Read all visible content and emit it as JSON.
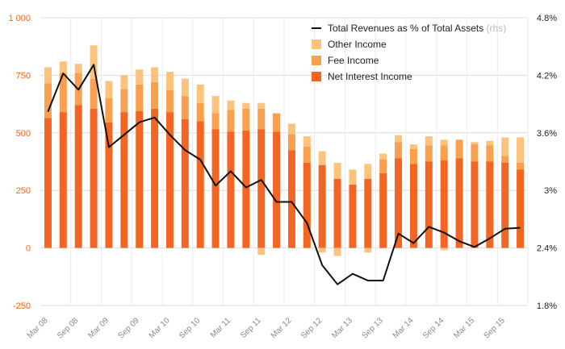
{
  "chart_data": {
    "type": "bar",
    "stacked": true,
    "grid": true,
    "legend_position": "top-right",
    "categories": [
      "Mar 08",
      "Jun 08",
      "Sep 08",
      "Dec 08",
      "Mar 09",
      "Jun 09",
      "Sep 09",
      "Dec 09",
      "Mar 10",
      "Jun 10",
      "Sep 10",
      "Dec 10",
      "Mar 11",
      "Jun 11",
      "Sep 11",
      "Dec 11",
      "Mar 12",
      "Jun 12",
      "Sep 12",
      "Dec 12",
      "Mar 13",
      "Jun 13",
      "Sep 13",
      "Dec 13",
      "Mar 14",
      "Jun 14",
      "Sep 14",
      "Dec 14",
      "Mar 15",
      "Jun 15",
      "Sep 15",
      "Dec 15"
    ],
    "x_tick_labels": [
      "Mar 08",
      "Sep 08",
      "Mar 09",
      "Sep 09",
      "Mar 10",
      "Sep 10",
      "Mar 11",
      "Sep 11",
      "Mar 12",
      "Sep 12",
      "Mar 13",
      "Sep 13",
      "Mar 14",
      "Sep 14",
      "Mar 15",
      "Sep 15"
    ],
    "series": [
      {
        "name": "Net Interest Income",
        "color": "#f26522",
        "axis": "left",
        "values": [
          565,
          590,
          620,
          605,
          545,
          590,
          595,
          605,
          590,
          560,
          550,
          515,
          505,
          510,
          515,
          505,
          425,
          370,
          360,
          300,
          275,
          300,
          325,
          390,
          365,
          375,
          380,
          390,
          375,
          375,
          370,
          340
        ]
      },
      {
        "name": "Fee Income",
        "color": "#f9a04f",
        "axis": "left",
        "values": [
          150,
          170,
          140,
          130,
          105,
          100,
          115,
          115,
          95,
          100,
          80,
          70,
          95,
          95,
          90,
          80,
          70,
          70,
          0,
          0,
          0,
          0,
          60,
          70,
          65,
          70,
          65,
          80,
          75,
          70,
          30,
          30
        ]
      },
      {
        "name": "Other Income",
        "color": "#fcc37e",
        "axis": "left",
        "values": [
          70,
          50,
          40,
          145,
          75,
          60,
          65,
          65,
          80,
          75,
          80,
          75,
          40,
          25,
          25,
          0,
          45,
          45,
          60,
          70,
          65,
          65,
          25,
          30,
          20,
          40,
          25,
          0,
          10,
          20,
          80,
          110
        ],
        "negative_values": [
          0,
          0,
          0,
          0,
          0,
          0,
          0,
          0,
          0,
          0,
          0,
          0,
          0,
          0,
          -30,
          0,
          0,
          0,
          -20,
          -35,
          0,
          -20,
          0,
          0,
          0,
          0,
          -10,
          0,
          0,
          0,
          0,
          0
        ]
      },
      {
        "name": "Total Revenues as % of Total Assets",
        "note": "(rhs)",
        "color": "#111111",
        "axis": "right",
        "type": "line",
        "values": [
          3.82,
          4.22,
          4.05,
          4.31,
          3.45,
          3.58,
          3.71,
          3.76,
          3.58,
          3.42,
          3.32,
          3.05,
          3.2,
          3.03,
          3.11,
          2.88,
          2.88,
          2.66,
          2.22,
          2.02,
          2.13,
          2.06,
          2.06,
          2.55,
          2.45,
          2.62,
          2.56,
          2.47,
          2.41,
          2.5,
          2.6,
          2.61
        ]
      }
    ],
    "ylim": [
      -250,
      1000
    ],
    "y_ticks": [
      "-250",
      "0",
      "250",
      "500",
      "750",
      "1 000"
    ],
    "y2lim": [
      1.8,
      4.8
    ],
    "y2_ticks": [
      "1.8%",
      "2.4%",
      "3%",
      "3.6%",
      "4.2%",
      "4.8%"
    ]
  }
}
